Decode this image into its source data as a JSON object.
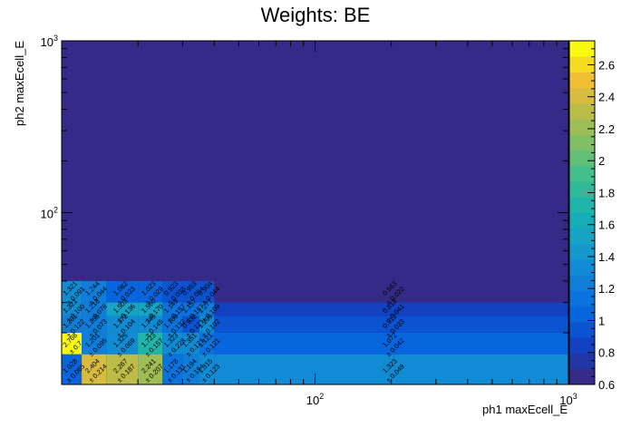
{
  "chart_data": {
    "type": "heatmap",
    "title": "Weights: BE",
    "xlabel": "ph1 maxEcell_E",
    "ylabel": "ph2 maxEcell_E",
    "x_scale": "log",
    "y_scale": "log",
    "xlim": [
      10,
      1000
    ],
    "ylim": [
      10,
      1000
    ],
    "x_ticks": [
      {
        "value": 100,
        "label": "10^2"
      },
      {
        "value": 1000,
        "label": "10^3"
      }
    ],
    "y_ticks": [
      {
        "value": 100,
        "label": "10^2"
      },
      {
        "value": 1000,
        "label": "10^3"
      }
    ],
    "x_edges": [
      10,
      12,
      15,
      20,
      25,
      30,
      35,
      40,
      1000
    ],
    "y_edges": [
      10,
      15,
      20,
      25,
      30,
      40,
      1000
    ],
    "z_range": [
      0.6,
      2.75
    ],
    "colorbar_ticks": [
      0.6,
      0.8,
      1,
      1.2,
      1.4,
      1.6,
      1.8,
      2,
      2.2,
      2.4,
      2.6
    ],
    "cells": [
      {
        "xi": 0,
        "yi": 0,
        "value": 1.028,
        "label": "1.028",
        "error": "± 0.065"
      },
      {
        "xi": 1,
        "yi": 0,
        "value": 2.404,
        "label": "2.404",
        "error": "± 0.214"
      },
      {
        "xi": 2,
        "yi": 0,
        "value": 2.267,
        "label": "2.267",
        "error": "± 0.187"
      },
      {
        "xi": 3,
        "yi": 0,
        "value": 2.241,
        "label": "2.241",
        "error": "± 0.207"
      },
      {
        "xi": 4,
        "yi": 0,
        "value": 1.178,
        "label": "1.178",
        "error": "± 0.131"
      },
      {
        "xi": 5,
        "yi": 0,
        "value": 1.194,
        "label": "1.194",
        "error": "± 0.194"
      },
      {
        "xi": 6,
        "yi": 0,
        "value": 1.315,
        "label": "1.315",
        "error": "± 0.123"
      },
      {
        "xi": 7,
        "yi": 0,
        "value": 1.323,
        "label": "1.323",
        "error": "± 0.049"
      },
      {
        "xi": 0,
        "yi": 1,
        "value": 2.768,
        "label": "2.768",
        "error": "± 0.7"
      },
      {
        "xi": 1,
        "yi": 1,
        "value": 1.201,
        "label": "1.201",
        "error": "± 0.095"
      },
      {
        "xi": 2,
        "yi": 1,
        "value": 1.325,
        "label": "1.325",
        "error": "± 0.069"
      },
      {
        "xi": 3,
        "yi": 1,
        "value": 1.723,
        "label": "1.723",
        "error": "± 0.157"
      },
      {
        "xi": 4,
        "yi": 1,
        "value": 1.323,
        "label": "1.323",
        "error": "± 0.228"
      },
      {
        "xi": 5,
        "yi": 1,
        "value": 1.351,
        "label": "1.351",
        "error": "± 0.121"
      },
      {
        "xi": 6,
        "yi": 1,
        "value": 1.121,
        "label": "1.121",
        "error": "± 0.121"
      },
      {
        "xi": 7,
        "yi": 1,
        "value": 1.072,
        "label": "1.072",
        "error": "± 0.042"
      },
      {
        "xi": 0,
        "yi": 2,
        "value": 1.261,
        "label": "1.261",
        "error": "± 0.122"
      },
      {
        "xi": 1,
        "yi": 2,
        "value": 1.255,
        "label": "1.255",
        "error": "± 0.073"
      },
      {
        "xi": 2,
        "yi": 2,
        "value": 1.372,
        "label": "1.372",
        "error": "± 0.104"
      },
      {
        "xi": 3,
        "yi": 2,
        "value": 1.345,
        "label": "1.345",
        "error": "± 0.145"
      },
      {
        "xi": 4,
        "yi": 2,
        "value": 1.169,
        "label": "1.169",
        "error": "± 0.132"
      },
      {
        "xi": 5,
        "yi": 2,
        "value": 0.932,
        "label": "0.932",
        "error": "± 0.121"
      },
      {
        "xi": 6,
        "yi": 2,
        "value": 1.295,
        "label": "1.295",
        "error": "± 0.102"
      },
      {
        "xi": 7,
        "yi": 2,
        "value": 0.912,
        "label": "0.912",
        "error": "± 0.033"
      },
      {
        "xi": 0,
        "yi": 3,
        "value": 1.321,
        "label": "1.321",
        "error": "± 0.100"
      },
      {
        "xi": 1,
        "yi": 3,
        "value": 1.218,
        "label": "1.218",
        "error": "± 0.078"
      },
      {
        "xi": 2,
        "yi": 3,
        "value": 1.503,
        "label": "1.503",
        "error": "± 0.136"
      },
      {
        "xi": 3,
        "yi": 3,
        "value": 1.56,
        "label": "1.560",
        "error": "± 0.170"
      },
      {
        "xi": 4,
        "yi": 3,
        "value": 1.149,
        "label": "1.149",
        "error": "± 0.157"
      },
      {
        "xi": 5,
        "yi": 3,
        "value": 1.157,
        "label": "1.157",
        "error": "± 0.157"
      },
      {
        "xi": 6,
        "yi": 3,
        "value": 1.277,
        "label": "1.277",
        "error": "± 0.109"
      },
      {
        "xi": 7,
        "yi": 3,
        "value": 0.818,
        "label": "0.818",
        "error": "± 0.041"
      },
      {
        "xi": 0,
        "yi": 4,
        "value": 1.321,
        "label": "1.321",
        "error": "± 0.091"
      },
      {
        "xi": 1,
        "yi": 4,
        "value": 1.244,
        "label": "1.244",
        "error": "± 0.044"
      },
      {
        "xi": 2,
        "yi": 4,
        "value": 1.082,
        "label": "1.082",
        "error": "± 0.033"
      },
      {
        "xi": 3,
        "yi": 4,
        "value": 1.023,
        "label": "1.023",
        "error": "± 0.029"
      },
      {
        "xi": 4,
        "yi": 4,
        "value": 0.923,
        "label": "0.923",
        "error": "± 0.038"
      },
      {
        "xi": 5,
        "yi": 4,
        "value": 0.953,
        "label": "0.953",
        "error": "± 0.054"
      },
      {
        "xi": 6,
        "yi": 4,
        "value": 0.904,
        "label": "0.904",
        "error": "± 0.044"
      },
      {
        "xi": 7,
        "yi": 4,
        "value": 0.563,
        "label": "0.563",
        "error": "± 0.022"
      }
    ]
  }
}
